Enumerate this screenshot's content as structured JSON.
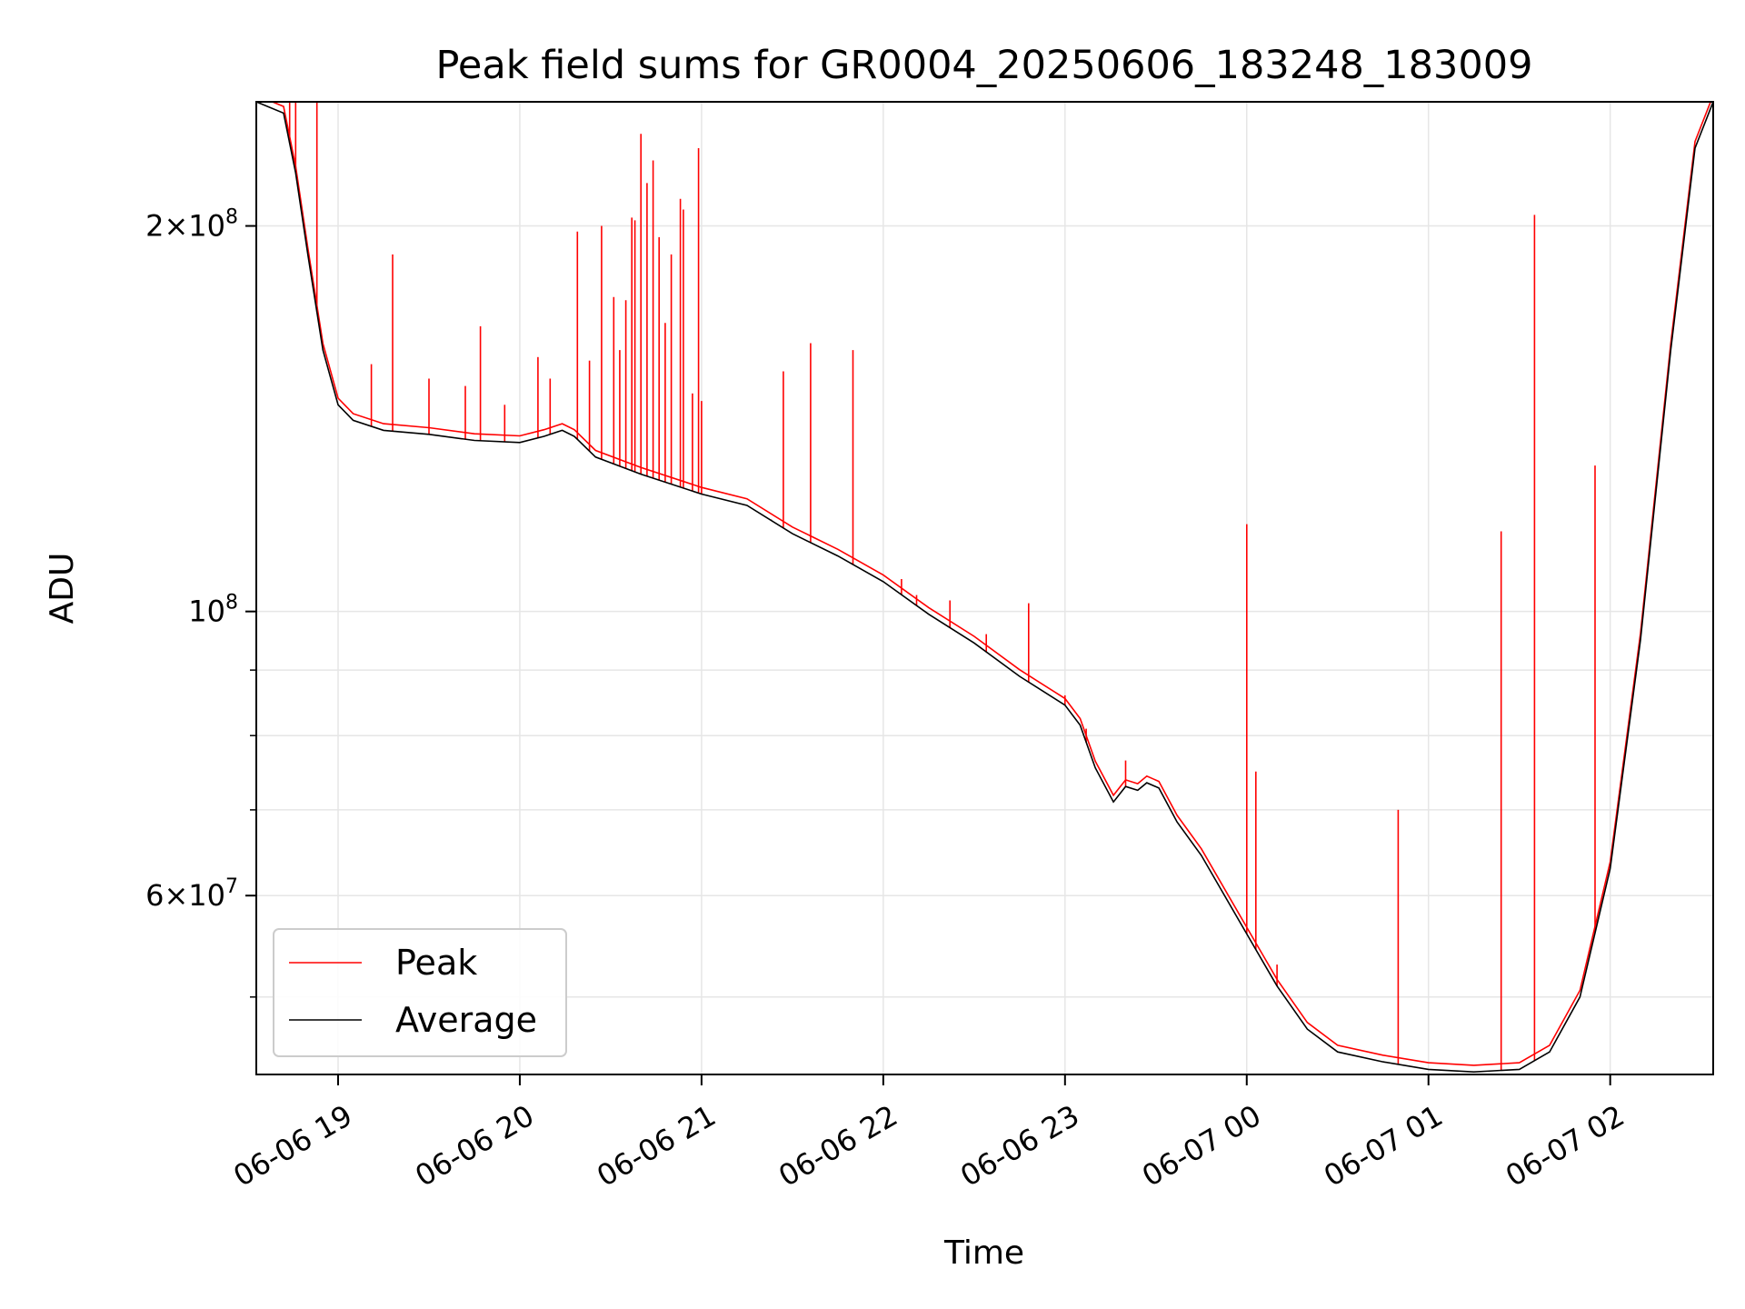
{
  "chart_data": {
    "type": "line",
    "title": "Peak field sums for GR0004_20250606_183248_183009",
    "xlabel": "Time",
    "ylabel": "ADU",
    "yscale": "log",
    "xlim": [
      "2025-06-06 18:33",
      "2025-06-07 02:34"
    ],
    "ylim": [
      43500000,
      250000000
    ],
    "grid": true,
    "legend_position": "lower-left",
    "x_ticks": [
      {
        "t": "2025-06-06 19:00",
        "label": "06-06 19"
      },
      {
        "t": "2025-06-06 20:00",
        "label": "06-06 20"
      },
      {
        "t": "2025-06-06 21:00",
        "label": "06-06 21"
      },
      {
        "t": "2025-06-06 22:00",
        "label": "06-06 22"
      },
      {
        "t": "2025-06-06 23:00",
        "label": "06-06 23"
      },
      {
        "t": "2025-06-07 00:00",
        "label": "06-07 00"
      },
      {
        "t": "2025-06-07 01:00",
        "label": "06-07 01"
      },
      {
        "t": "2025-06-07 02:00",
        "label": "06-07 02"
      }
    ],
    "y_major_ticks": [
      {
        "value": 60000000,
        "mantissa": "6",
        "exponent": "7"
      },
      {
        "value": 100000000,
        "mantissa": "",
        "exponent": "8"
      },
      {
        "value": 200000000,
        "mantissa": "2",
        "exponent": "8"
      }
    ],
    "y_minor_ticks": [
      50000000,
      70000000,
      80000000,
      90000000
    ],
    "series": [
      {
        "name": "Average",
        "color": "#000000",
        "points": [
          [
            "2025-06-06 18:33",
            250000000
          ],
          [
            "2025-06-06 18:42",
            245000000
          ],
          [
            "2025-06-06 18:46",
            220000000
          ],
          [
            "2025-06-06 18:50",
            190000000
          ],
          [
            "2025-06-06 18:55",
            160000000
          ],
          [
            "2025-06-06 19:00",
            145000000
          ],
          [
            "2025-06-06 19:05",
            141000000
          ],
          [
            "2025-06-06 19:15",
            138500000
          ],
          [
            "2025-06-06 19:30",
            137500000
          ],
          [
            "2025-06-06 19:45",
            136000000
          ],
          [
            "2025-06-06 20:00",
            135500000
          ],
          [
            "2025-06-06 20:08",
            137000000
          ],
          [
            "2025-06-06 20:14",
            138500000
          ],
          [
            "2025-06-06 20:18",
            137000000
          ],
          [
            "2025-06-06 20:25",
            132000000
          ],
          [
            "2025-06-06 20:40",
            128000000
          ],
          [
            "2025-06-06 21:00",
            123500000
          ],
          [
            "2025-06-06 21:15",
            121000000
          ],
          [
            "2025-06-06 21:30",
            115000000
          ],
          [
            "2025-06-06 21:45",
            110500000
          ],
          [
            "2025-06-06 22:00",
            105500000
          ],
          [
            "2025-06-06 22:15",
            99500000
          ],
          [
            "2025-06-06 22:30",
            94500000
          ],
          [
            "2025-06-06 22:45",
            89000000
          ],
          [
            "2025-06-06 23:00",
            84500000
          ],
          [
            "2025-06-06 23:05",
            81500000
          ],
          [
            "2025-06-06 23:10",
            75500000
          ],
          [
            "2025-06-06 23:16",
            71000000
          ],
          [
            "2025-06-06 23:20",
            73000000
          ],
          [
            "2025-06-06 23:24",
            72500000
          ],
          [
            "2025-06-06 23:27",
            73500000
          ],
          [
            "2025-06-06 23:31",
            72800000
          ],
          [
            "2025-06-06 23:37",
            68500000
          ],
          [
            "2025-06-06 23:45",
            64500000
          ],
          [
            "2025-06-07 00:00",
            56000000
          ],
          [
            "2025-06-07 00:10",
            51000000
          ],
          [
            "2025-06-07 00:20",
            47200000
          ],
          [
            "2025-06-07 00:30",
            45300000
          ],
          [
            "2025-06-07 00:45",
            44500000
          ],
          [
            "2025-06-07 01:00",
            43900000
          ],
          [
            "2025-06-07 01:15",
            43700000
          ],
          [
            "2025-06-07 01:30",
            43900000
          ],
          [
            "2025-06-07 01:40",
            45300000
          ],
          [
            "2025-06-07 01:50",
            50000000
          ],
          [
            "2025-06-07 02:00",
            63000000
          ],
          [
            "2025-06-07 02:10",
            95000000
          ],
          [
            "2025-06-07 02:20",
            160000000
          ],
          [
            "2025-06-07 02:28",
            230000000
          ],
          [
            "2025-06-07 02:34",
            250000000
          ]
        ]
      },
      {
        "name": "Peak",
        "color": "#ff0000",
        "spikes": [
          [
            "2025-06-06 18:44",
            250000000
          ],
          [
            "2025-06-06 18:46",
            250000000
          ],
          [
            "2025-06-06 18:53",
            250000000
          ],
          [
            "2025-06-06 19:11",
            156000000
          ],
          [
            "2025-06-06 19:18",
            190000000
          ],
          [
            "2025-06-06 19:30",
            152000000
          ],
          [
            "2025-06-06 19:42",
            150000000
          ],
          [
            "2025-06-06 19:47",
            167000000
          ],
          [
            "2025-06-06 19:55",
            145000000
          ],
          [
            "2025-06-06 20:06",
            158000000
          ],
          [
            "2025-06-06 20:10",
            152000000
          ],
          [
            "2025-06-06 20:19",
            198000000
          ],
          [
            "2025-06-06 20:23",
            157000000
          ],
          [
            "2025-06-06 20:27",
            200000000
          ],
          [
            "2025-06-06 20:31",
            176000000
          ],
          [
            "2025-06-06 20:33",
            160000000
          ],
          [
            "2025-06-06 20:35",
            175000000
          ],
          [
            "2025-06-06 20:37",
            203000000
          ],
          [
            "2025-06-06 20:38",
            202000000
          ],
          [
            "2025-06-06 20:40",
            236000000
          ],
          [
            "2025-06-06 20:42",
            216000000
          ],
          [
            "2025-06-06 20:44",
            225000000
          ],
          [
            "2025-06-06 20:46",
            196000000
          ],
          [
            "2025-06-06 20:48",
            168000000
          ],
          [
            "2025-06-06 20:50",
            190000000
          ],
          [
            "2025-06-06 20:53",
            210000000
          ],
          [
            "2025-06-06 20:54",
            206000000
          ],
          [
            "2025-06-06 20:57",
            148000000
          ],
          [
            "2025-06-06 20:59",
            230000000
          ],
          [
            "2025-06-06 21:00",
            146000000
          ],
          [
            "2025-06-06 21:23",
            118000000
          ],
          [
            "2025-06-06 21:27",
            154000000
          ],
          [
            "2025-06-06 21:36",
            162000000
          ],
          [
            "2025-06-06 21:50",
            160000000
          ],
          [
            "2025-06-06 22:06",
            106000000
          ],
          [
            "2025-06-06 22:11",
            103000000
          ],
          [
            "2025-06-06 22:22",
            102000000
          ],
          [
            "2025-06-06 22:34",
            96000000
          ],
          [
            "2025-06-06 22:48",
            101500000
          ],
          [
            "2025-06-06 23:00",
            86000000
          ],
          [
            "2025-06-06 23:07",
            81000000
          ],
          [
            "2025-06-06 23:20",
            76500000
          ],
          [
            "2025-06-07 00:00",
            117000000
          ],
          [
            "2025-06-07 00:03",
            75000000
          ],
          [
            "2025-06-07 00:10",
            53000000
          ],
          [
            "2025-06-07 00:50",
            70000000
          ],
          [
            "2025-06-07 01:24",
            115500000
          ],
          [
            "2025-06-07 01:35",
            204000000
          ],
          [
            "2025-06-07 01:55",
            130000000
          ]
        ]
      }
    ]
  }
}
